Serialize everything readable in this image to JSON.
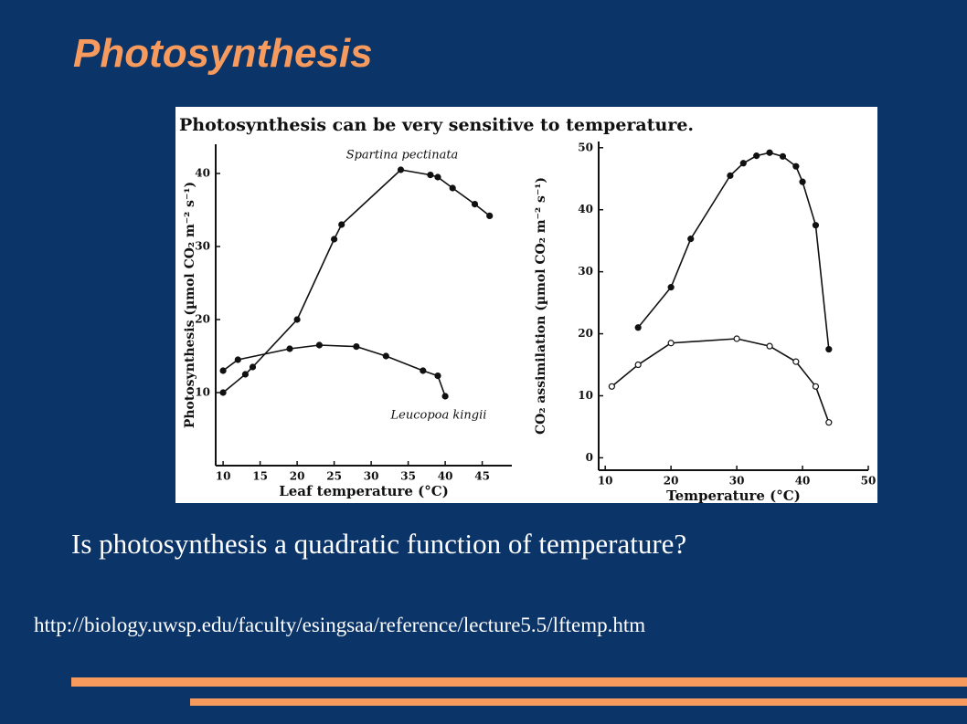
{
  "slide": {
    "title": "Photosynthesis",
    "question": "Is photosynthesis a quadratic function of temperature?",
    "url": "http://biology.uwsp.edu/faculty/esingsaa/reference/lecture5.5/lftemp.htm",
    "figure_caption": "Photosynthesis can be very sensitive to temperature."
  },
  "chart_data": [
    {
      "type": "line",
      "x_label": "Leaf temperature (°C)",
      "y_label": "Photosynthesis (µmol CO₂ m⁻² s⁻¹)",
      "xlim": [
        9,
        49
      ],
      "xticks": [
        10,
        15,
        20,
        25,
        30,
        35,
        40,
        45
      ],
      "ylim": [
        0,
        44
      ],
      "yticks": [
        10,
        20,
        30,
        40
      ],
      "series": [
        {
          "name": "Spartina pectinata",
          "color": "#111111",
          "marker_fill": "#111111",
          "x": [
            10,
            13,
            14,
            20,
            25,
            26,
            34,
            38,
            39,
            41,
            44,
            46
          ],
          "values": [
            10,
            12.5,
            13.5,
            20,
            31,
            33,
            40.5,
            39.8,
            39.5,
            38,
            35.8,
            34.2
          ]
        },
        {
          "name": "Leucopoa kingii",
          "color": "#111111",
          "marker_fill": "#111111",
          "x": [
            10,
            12,
            19,
            23,
            28,
            32,
            37,
            39,
            40
          ],
          "values": [
            13,
            14.5,
            16,
            16.5,
            16.3,
            15,
            13,
            12.3,
            9.5
          ]
        }
      ]
    },
    {
      "type": "line",
      "x_label": "Temperature (°C)",
      "y_label": "CO₂ assimilation (µmol CO₂ m⁻² s⁻¹)",
      "xlim": [
        9,
        50
      ],
      "xticks": [
        10,
        20,
        30,
        40,
        50
      ],
      "ylim": [
        -2,
        51
      ],
      "yticks": [
        0,
        10,
        20,
        30,
        40,
        50
      ],
      "series": [
        {
          "color": "#111111",
          "marker_fill": "#111111",
          "x": [
            15,
            20,
            23,
            29,
            31,
            33,
            35,
            37,
            39,
            40,
            42,
            44
          ],
          "values": [
            21,
            27.5,
            35.3,
            45.5,
            47.5,
            48.7,
            49.2,
            48.6,
            47,
            44.5,
            37.5,
            17.5
          ]
        },
        {
          "color": "#111111",
          "marker_fill": "#ffffff",
          "x": [
            11,
            15,
            20,
            30,
            35,
            39,
            42,
            44
          ],
          "values": [
            11.5,
            15,
            18.5,
            19.2,
            18,
            15.5,
            11.5,
            5.7
          ]
        }
      ]
    }
  ]
}
